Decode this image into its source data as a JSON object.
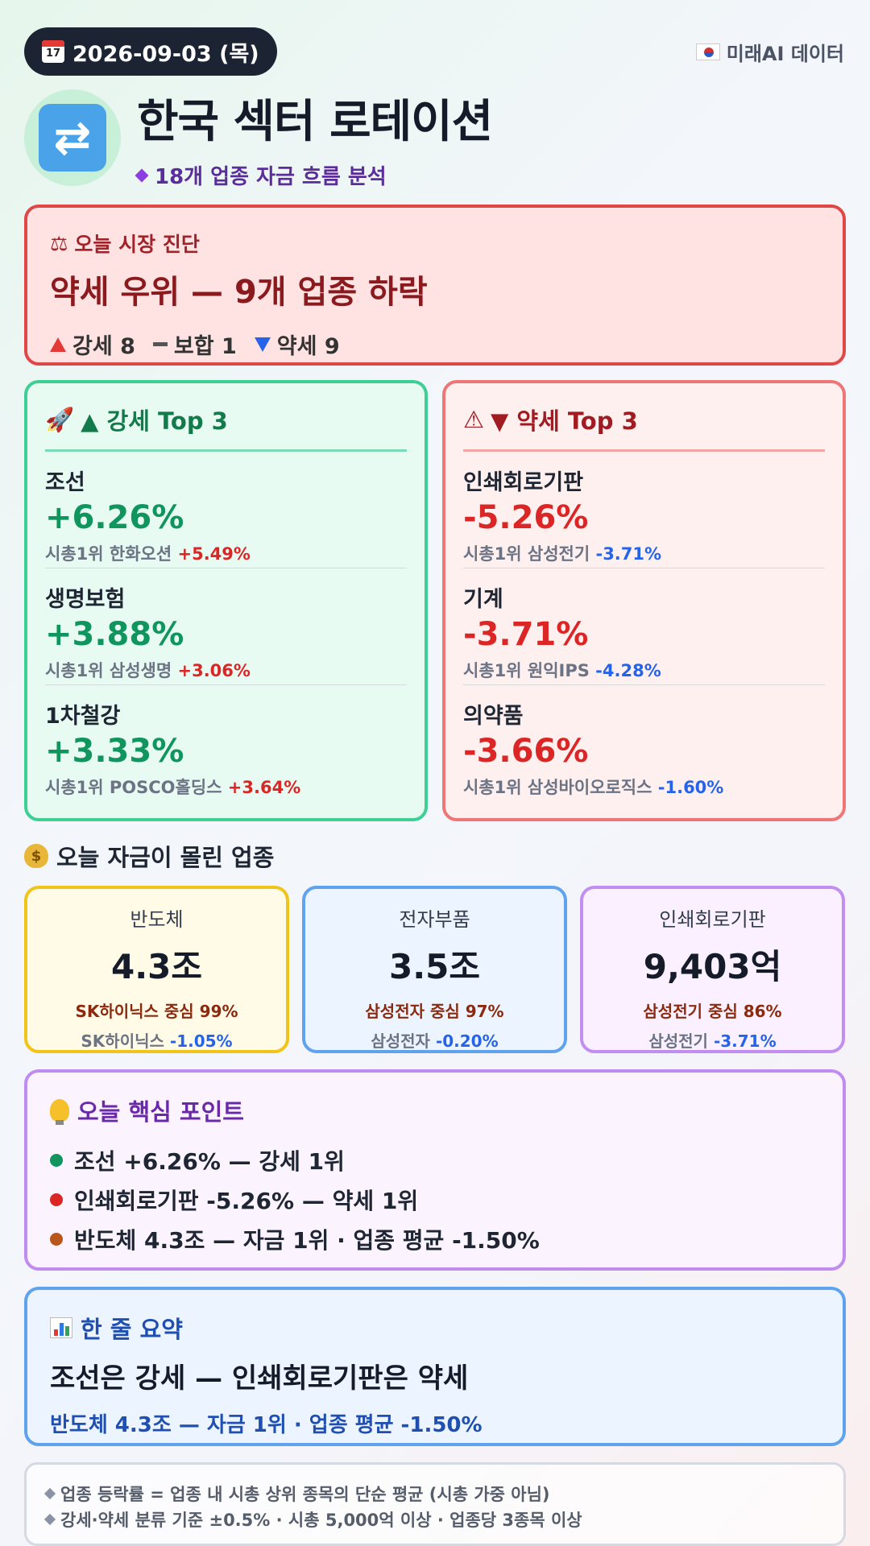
{
  "header": {
    "date": "2026-09-03 (목)",
    "calendar_icon_text": "17",
    "source": "미래AI 데이터",
    "title": "한국 섹터 로테이션",
    "subtitle": "18개 업종 자금 흐름 분석"
  },
  "diagnosis": {
    "label": "오늘 시장 진단",
    "title": "약세 우위 — 9개 업종 하락",
    "strong": "강세 8",
    "mixed": "보합 1",
    "weak": "약세 9"
  },
  "top_up": {
    "heading": "▲ 강세 Top 3",
    "items": [
      {
        "name": "조선",
        "pct": "+6.26%",
        "leader": "시총1위 한화오션",
        "leader_pct": "+5.49%"
      },
      {
        "name": "생명보험",
        "pct": "+3.88%",
        "leader": "시총1위 삼성생명",
        "leader_pct": "+3.06%"
      },
      {
        "name": "1차철강",
        "pct": "+3.33%",
        "leader": "시총1위 POSCO홀딩스",
        "leader_pct": "+3.64%"
      }
    ]
  },
  "top_down": {
    "heading": "▼ 약세 Top 3",
    "items": [
      {
        "name": "인쇄회로기판",
        "pct": "-5.26%",
        "leader": "시총1위 삼성전기",
        "leader_pct": "-3.71%"
      },
      {
        "name": "기계",
        "pct": "-3.71%",
        "leader": "시총1위 원익IPS",
        "leader_pct": "-4.28%"
      },
      {
        "name": "의약품",
        "pct": "-3.66%",
        "leader": "시총1위 삼성바이오로직스",
        "leader_pct": "-1.60%"
      }
    ]
  },
  "money": {
    "heading": "오늘 자금이 몰린 업종",
    "cards": [
      {
        "name": "반도체",
        "amount": "4.3조",
        "center": "SK하이닉스 중심 99%",
        "stock": "SK하이닉스",
        "stock_pct": "-1.05%"
      },
      {
        "name": "전자부품",
        "amount": "3.5조",
        "center": "삼성전자 중심 97%",
        "stock": "삼성전자",
        "stock_pct": "-0.20%"
      },
      {
        "name": "인쇄회로기판",
        "amount": "9,403억",
        "center": "삼성전기 중심 86%",
        "stock": "삼성전기",
        "stock_pct": "-3.71%"
      }
    ]
  },
  "key_points": {
    "heading": "오늘 핵심 포인트",
    "items": [
      {
        "text": "조선 +6.26% — 강세 1위",
        "color": "#10955e"
      },
      {
        "text": "인쇄회로기판 -5.26% — 약세 1위",
        "color": "#dc2626"
      },
      {
        "text": "반도체 4.3조 — 자금 1위 · 업종 평균 -1.50%",
        "color": "#b8561c"
      }
    ]
  },
  "summary": {
    "heading": "한 줄 요약",
    "title": "조선은 강세 — 인쇄회로기판은 약세",
    "sub": "반도체 4.3조 — 자금 1위 · 업종 평균 -1.50%"
  },
  "footnote": {
    "line1": "업종 등락률 = 업종 내 시총 상위 종목의 단순 평균 (시총 가중 아님)",
    "line2": "강세·약세 분류 기준 ±0.5% · 시총 5,000억 이상 · 업종당 3종목 이상"
  },
  "colors": {
    "up": "#10955e",
    "down": "#dc2626",
    "neg_blue": "#2563eb",
    "accent_dark": "#1c2434"
  }
}
